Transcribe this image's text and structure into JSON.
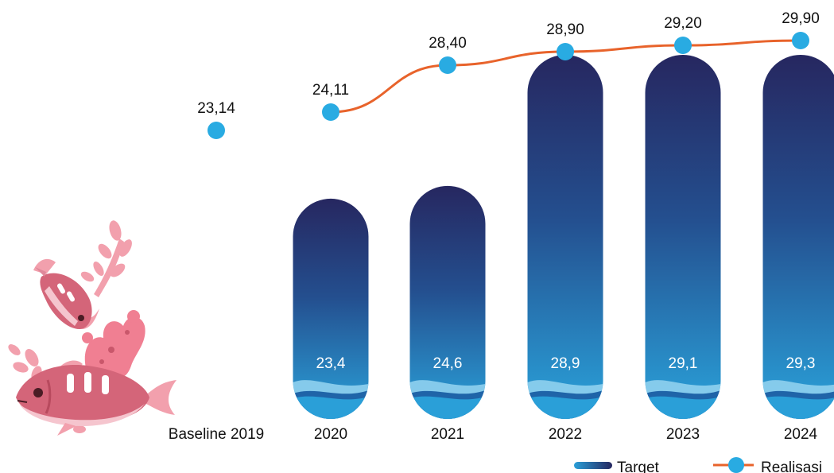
{
  "chart_data": {
    "type": "bar",
    "categories": [
      "Baseline 2019",
      "2020",
      "2021",
      "2022",
      "2023",
      "2024"
    ],
    "series": [
      {
        "name": "Target",
        "type": "bar",
        "values": [
          null,
          23.4,
          24.6,
          28.9,
          29.1,
          29.3
        ],
        "labels": [
          "",
          "23,4",
          "24,6",
          "28,9",
          "29,1",
          "29,3"
        ]
      },
      {
        "name": "Realisasi",
        "type": "line",
        "values": [
          23.14,
          24.11,
          28.4,
          28.9,
          29.2,
          29.9
        ],
        "labels": [
          "23,14",
          "24,11",
          "28,40",
          "28,90",
          "29,20",
          "29,90"
        ]
      }
    ],
    "colors": {
      "bar_top": "#262760",
      "bar_bottom": "#2a9fd8",
      "wave_light": "#8fd0ee",
      "wave_dark": "#1f64a8",
      "line": "#e8632b",
      "marker": "#29abe2"
    },
    "legend": {
      "position": "bottom-right",
      "items": [
        "Target",
        "Realisasi"
      ]
    },
    "grid": false
  },
  "decoration": {
    "illustration": "pink-fish-and-coral"
  }
}
